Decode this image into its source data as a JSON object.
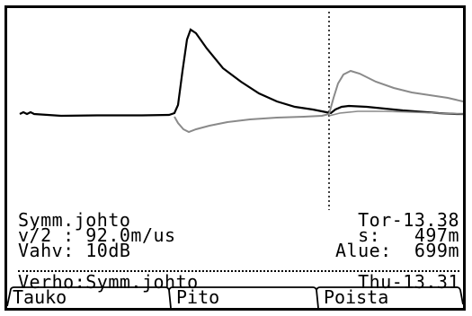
{
  "colors": {
    "background": "#ffffff",
    "foreground": "#000000",
    "trace_secondary": "#8a8a8a"
  },
  "plot": {
    "cursor_line": "dotted vertical"
  },
  "info": {
    "cable_type": "Symm.johto",
    "cursor_mode": "Tor-13.38",
    "velocity_label": "v/2 :",
    "velocity_value": "92.0m/us",
    "distance_label": "s:",
    "distance_value": "497m",
    "gain_label": "Vahv:",
    "gain_value": "10dB",
    "range_label": "Alue:",
    "range_value": "699m",
    "reference_label": "Verho:Symm.johto",
    "reference_date": "Thu-13.31"
  },
  "softkeys": [
    "Tauko",
    "Pito",
    "Poista"
  ]
}
